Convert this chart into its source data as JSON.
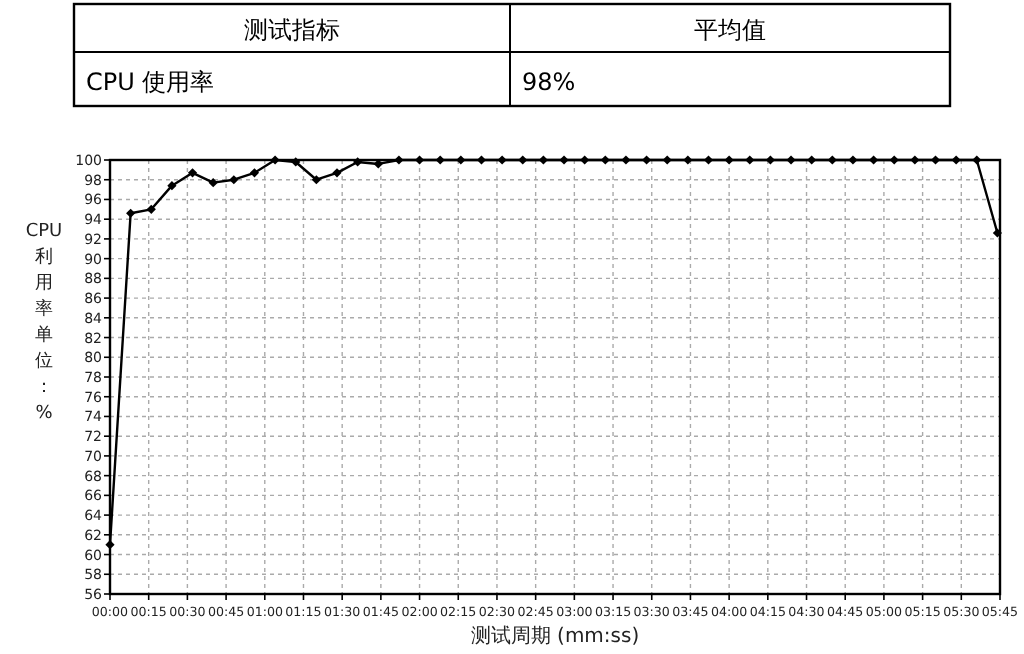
{
  "chart_data": [
    {
      "type": "other",
      "annotations": [
        "测试指标",
        "平均值",
        "CPU 使用率",
        "98%"
      ]
    },
    {
      "type": "line",
      "xlabel": "测试周期 (mm:ss)",
      "ylabel": "CPU利用率单位：%",
      "x": [
        0,
        8,
        16,
        24,
        32,
        40,
        48,
        56,
        64,
        72,
        80,
        88,
        96,
        104,
        112,
        120,
        128,
        136,
        144,
        152,
        160,
        168,
        176,
        184,
        192,
        200,
        208,
        216,
        224,
        232,
        240,
        248,
        256,
        264,
        272,
        280,
        288,
        296,
        304,
        312,
        320,
        328,
        336,
        344
      ],
      "series": [
        {
          "color": "#000000",
          "values": [
            61,
            94.6,
            95,
            97.4,
            98.7,
            97.7,
            98,
            98.7,
            100,
            99.8,
            98,
            98.7,
            99.8,
            99.6,
            100,
            100,
            100,
            100,
            100,
            100,
            100,
            100,
            100,
            100,
            100,
            100,
            100,
            100,
            100,
            100,
            100,
            100,
            100,
            100,
            100,
            100,
            100,
            100,
            100,
            100,
            100,
            100,
            100,
            92.6
          ]
        }
      ],
      "xlim": [
        0,
        345
      ],
      "xticks": [
        {
          "value": 0,
          "label": "00:00"
        },
        {
          "value": 15,
          "label": "00:15"
        },
        {
          "value": 30,
          "label": "00:30"
        },
        {
          "value": 45,
          "label": "00:45"
        },
        {
          "value": 60,
          "label": "01:00"
        },
        {
          "value": 75,
          "label": "01:15"
        },
        {
          "value": 90,
          "label": "01:30"
        },
        {
          "value": 105,
          "label": "01:45"
        },
        {
          "value": 120,
          "label": "02:00"
        },
        {
          "value": 135,
          "label": "02:15"
        },
        {
          "value": 150,
          "label": "02:30"
        },
        {
          "value": 165,
          "label": "02:45"
        },
        {
          "value": 180,
          "label": "03:00"
        },
        {
          "value": 195,
          "label": "03:15"
        },
        {
          "value": 210,
          "label": "03:30"
        },
        {
          "value": 225,
          "label": "03:45"
        },
        {
          "value": 240,
          "label": "04:00"
        },
        {
          "value": 255,
          "label": "04:15"
        },
        {
          "value": 270,
          "label": "04:30"
        },
        {
          "value": 285,
          "label": "04:45"
        },
        {
          "value": 300,
          "label": "05:00"
        },
        {
          "value": 315,
          "label": "05:15"
        },
        {
          "value": 330,
          "label": "05:30"
        },
        {
          "value": 345,
          "label": "05:45"
        }
      ],
      "ylim": [
        56,
        100
      ],
      "yticks": [
        56,
        58,
        60,
        62,
        64,
        66,
        68,
        70,
        72,
        74,
        76,
        78,
        80,
        82,
        84,
        86,
        88,
        90,
        92,
        94,
        96,
        98,
        100
      ],
      "grid": true,
      "marker": "diamond",
      "line_style": "solid"
    }
  ]
}
